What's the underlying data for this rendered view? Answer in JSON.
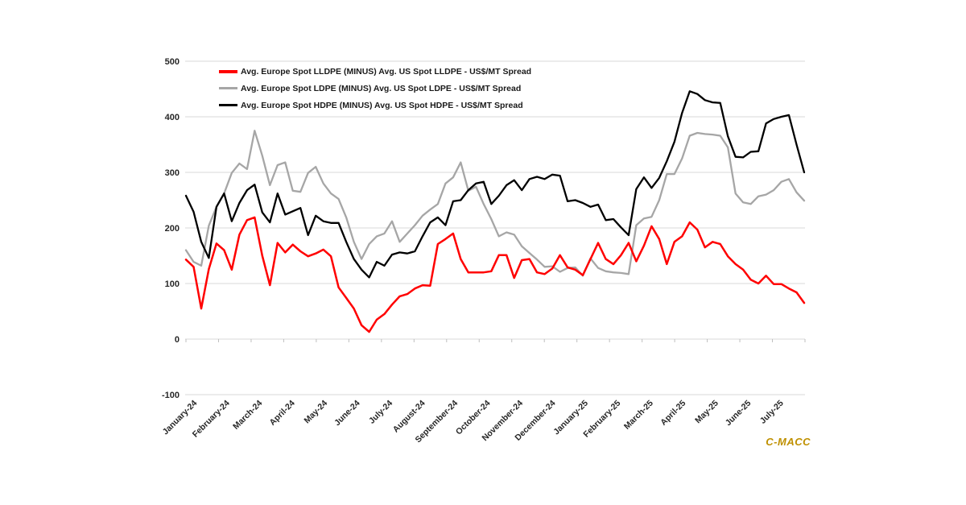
{
  "watermark": {
    "text": "C-MACC",
    "color": "#BF9000"
  },
  "chart_data": {
    "type": "line",
    "title": "",
    "xlabel": "",
    "ylabel": "",
    "unit": "US$/MT",
    "grid": "horizontal",
    "legend_position": "top-left-inside",
    "x_granularity": "weekly",
    "ylim": [
      -100,
      500
    ],
    "y_ticks": [
      500,
      400,
      300,
      200,
      100,
      0,
      -100
    ],
    "x_labels": [
      "January-24",
      "February-24",
      "March-24",
      "April-24",
      "May-24",
      "June-24",
      "July-24",
      "August-24",
      "September-24",
      "October-24",
      "November-24",
      "December-24",
      "January-25",
      "February-25",
      "March-25",
      "April-25",
      "May-25",
      "June-25",
      "July-25"
    ],
    "series": [
      {
        "name": "Avg. Europe Spot LLDPE (MINUS) Avg. US Spot LLDPE - US$/MT Spread",
        "color": "#FF0000",
        "values": [
          143,
          130,
          55,
          126,
          172,
          160,
          125,
          188,
          214,
          219,
          150,
          97,
          173,
          156,
          170,
          158,
          149,
          154,
          161,
          149,
          93,
          74,
          55,
          25,
          13,
          35,
          45,
          62,
          77,
          81,
          91,
          97,
          96,
          171,
          180,
          190,
          144,
          120,
          120,
          120,
          122,
          151,
          151,
          110,
          142,
          144,
          120,
          117,
          127,
          151,
          129,
          125,
          115,
          144,
          173,
          144,
          135,
          151,
          173,
          140,
          168,
          203,
          180,
          135,
          175,
          185,
          210,
          197,
          165,
          175,
          171,
          149,
          135,
          125,
          107,
          100,
          114,
          99,
          99,
          91,
          84,
          65
        ]
      },
      {
        "name": "Avg. Europe Spot LDPE (MINUS) Avg. US Spot LDPE - US$/MT Spread",
        "color": "#A6A6A6",
        "values": [
          160,
          139,
          132,
          204,
          238,
          262,
          299,
          316,
          306,
          375,
          330,
          277,
          313,
          318,
          267,
          265,
          299,
          310,
          280,
          262,
          252,
          219,
          175,
          144,
          171,
          185,
          190,
          212,
          175,
          190,
          205,
          222,
          233,
          243,
          280,
          291,
          318,
          267,
          274,
          243,
          216,
          185,
          192,
          188,
          167,
          155,
          143,
          130,
          131,
          121,
          128,
          129,
          114,
          145,
          128,
          122,
          120,
          119,
          117,
          205,
          217,
          220,
          250,
          297,
          297,
          325,
          366,
          371,
          369,
          368,
          366,
          345,
          262,
          246,
          243,
          257,
          260,
          268,
          283,
          288,
          264,
          249
        ]
      },
      {
        "name": "Avg. Europe Spot HDPE (MINUS) Avg. US Spot HDPE - US$/MT Spread",
        "color": "#000000",
        "values": [
          258,
          229,
          175,
          146,
          238,
          262,
          212,
          245,
          268,
          278,
          228,
          210,
          262,
          224,
          230,
          236,
          187,
          222,
          212,
          209,
          209,
          175,
          144,
          125,
          111,
          139,
          132,
          152,
          156,
          154,
          158,
          185,
          210,
          219,
          205,
          248,
          250,
          268,
          280,
          283,
          243,
          258,
          277,
          286,
          268,
          288,
          292,
          288,
          296,
          294,
          248,
          250,
          245,
          238,
          242,
          214,
          216,
          201,
          187,
          270,
          291,
          272,
          290,
          320,
          355,
          407,
          446,
          441,
          430,
          426,
          425,
          365,
          328,
          327,
          337,
          338,
          388,
          396,
          400,
          403,
          350,
          300
        ]
      }
    ]
  }
}
